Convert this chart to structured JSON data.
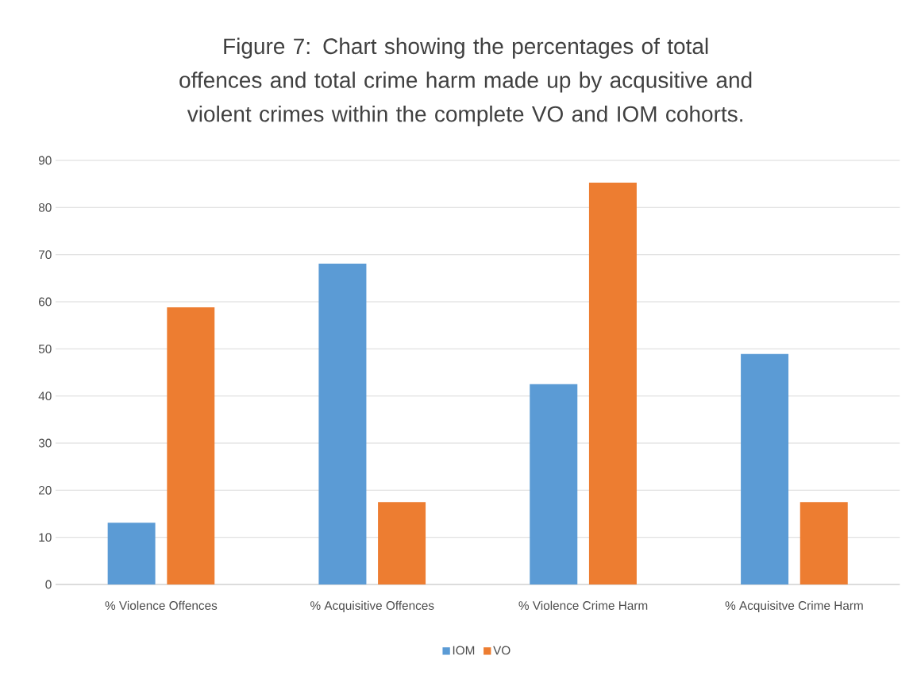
{
  "chart_data": {
    "type": "bar",
    "title": "Figure 7: Chart showing the percentages of total offences and total crime harm made up by acqusitive and violent crimes within the complete VO and IOM cohorts.",
    "categories": [
      "% Violence Offences",
      "% Acquisitive Offences",
      "% Violence Crime Harm",
      "% Acquisitve Crime Harm"
    ],
    "series": [
      {
        "name": "IOM",
        "color": "#5b9bd5",
        "values": [
          13.1,
          68.1,
          42.5,
          48.9
        ]
      },
      {
        "name": "VO",
        "color": "#ed7d31",
        "values": [
          58.8,
          17.5,
          85.3,
          17.5
        ]
      }
    ],
    "ylim": [
      0,
      90
    ],
    "yticks": [
      0,
      10,
      20,
      30,
      40,
      50,
      60,
      70,
      80,
      90
    ],
    "grid": "y",
    "legend": "bottom"
  }
}
